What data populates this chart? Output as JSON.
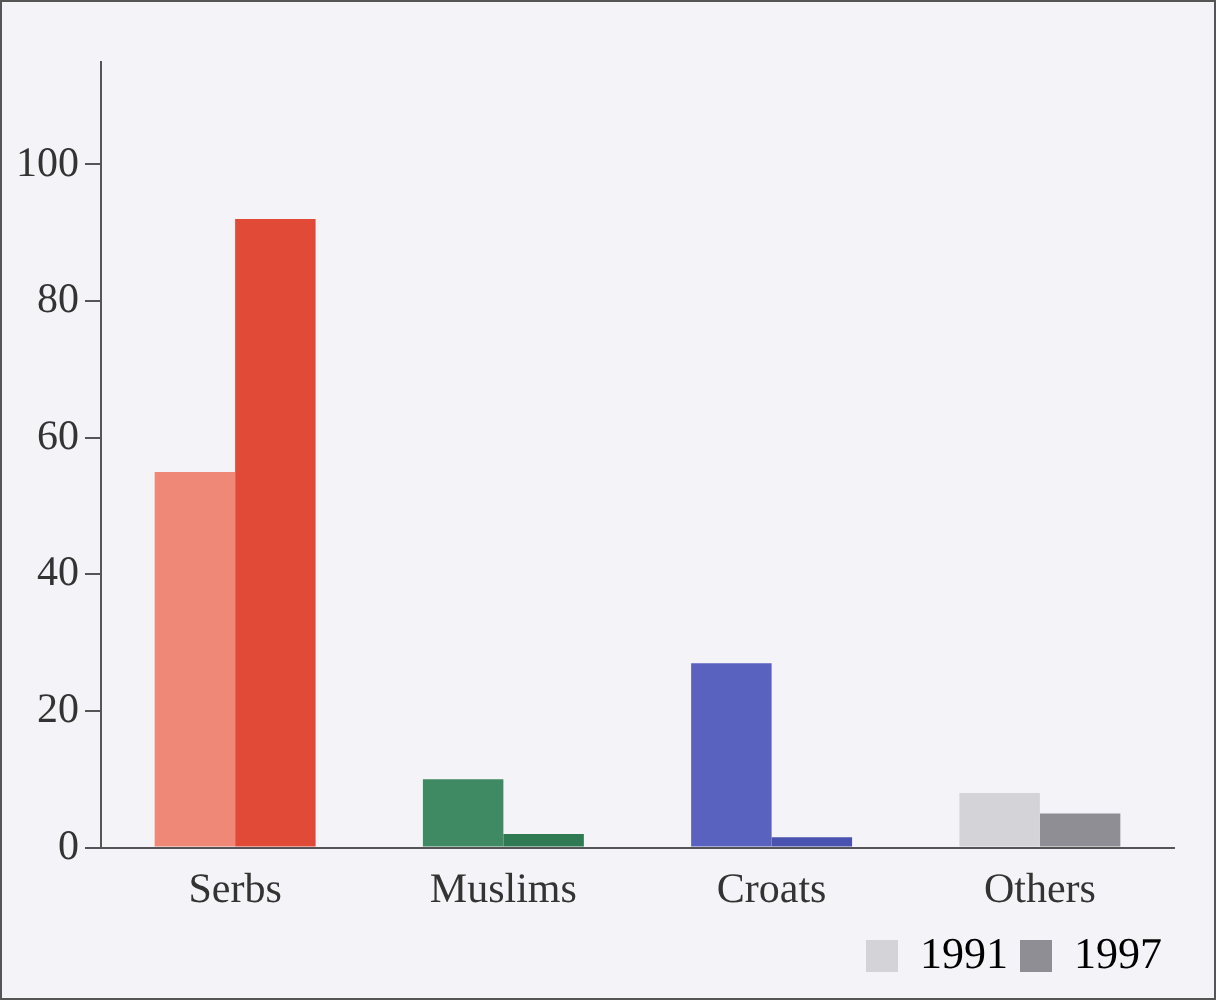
{
  "chart_data": {
    "type": "bar",
    "categories": [
      "Serbs",
      "Muslims",
      "Croats",
      "Others"
    ],
    "series": [
      {
        "name": "1991",
        "color": "#d4d4d8",
        "colors": [
          "#f08878",
          "#3f8a62",
          "#5a62c0",
          "#d4d4d8"
        ],
        "values": [
          55,
          10,
          27,
          8
        ]
      },
      {
        "name": "1997",
        "color": "#8e8e94",
        "colors": [
          "#e24a38",
          "#2f7a52",
          "#4a52b0",
          "#8e8e94"
        ],
        "values": [
          92,
          2,
          1.5,
          5
        ]
      }
    ],
    "ylim": [
      0,
      115
    ],
    "yticks": [
      0,
      20,
      40,
      60,
      80,
      100
    ],
    "grid": false,
    "legend": "bottom right"
  }
}
